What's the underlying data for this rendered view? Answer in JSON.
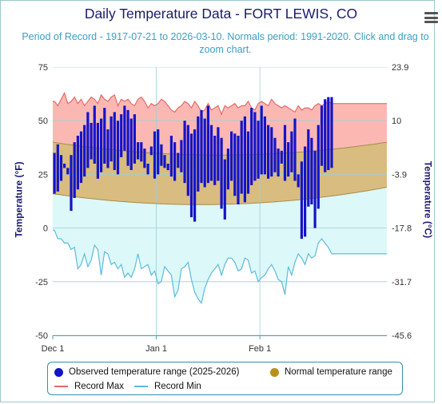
{
  "title": "Daily Temperature Data - FORT LEWIS, CO",
  "subtitle": "Period of Record - 1917-07-21 to 2026-03-10. Normals period: 1991-2020. Click and drag to zoom chart.",
  "menu_icon": "hamburger-menu-icon",
  "colors": {
    "observed": "#1414c8",
    "normal_fill": "#d9bc80",
    "normal_dot": "#b8901c",
    "record_max_line": "#e36b6b",
    "record_max_fill": "#fbb8b3",
    "record_min_line": "#5cbcde",
    "record_min_fill": "#dcf8f8"
  },
  "legend": {
    "observed": "Observed temperature range (2025-2026)",
    "normal": "Normal temperature range",
    "record_max": "Record Max",
    "record_min": "Record Min"
  },
  "chart_data": {
    "type": "area",
    "title": "Daily Temperature Data - FORT LEWIS, CO",
    "x_start": "2025-12-01",
    "x_ticks": [
      "Dec 1",
      "Jan 1",
      "Feb 1"
    ],
    "ylabel_left": "Temperature (°F)",
    "ylabel_right": "Temperature (°C)",
    "ylim_f": [
      -50,
      75
    ],
    "yticks_left": [
      "75",
      "50",
      "25",
      "0",
      "-25",
      "-50"
    ],
    "yticks_right": [
      "23.9",
      "10",
      "-3.9",
      "-17.8",
      "-31.7",
      "-45.6"
    ],
    "grid": true,
    "legend_position": "bottom",
    "series": [
      {
        "name": "Observed temperature range (2025-2026)",
        "low": [
          16,
          17,
          22,
          28,
          25,
          8,
          14,
          18,
          21,
          24,
          28,
          32,
          30,
          23,
          26,
          30,
          28,
          31,
          27,
          25,
          33,
          36,
          29,
          27,
          30,
          32,
          31,
          28,
          25,
          34,
          23,
          25,
          29,
          28,
          27,
          24,
          22,
          28,
          26,
          21,
          15,
          5,
          3,
          17,
          21,
          19,
          21,
          22,
          20,
          22,
          9,
          4,
          18,
          22,
          15,
          11,
          16,
          12,
          16,
          20,
          22,
          23,
          25,
          25,
          23,
          24,
          26,
          24,
          30,
          22,
          24,
          26,
          22,
          19,
          -5,
          -4,
          10,
          11,
          0,
          9,
          29,
          26,
          27,
          28
        ],
        "high": [
          35,
          39,
          34,
          30,
          28,
          34,
          40,
          43,
          45,
          48,
          54,
          49,
          57,
          49,
          51,
          56,
          46,
          52,
          54,
          50,
          53,
          57,
          55,
          51,
          53,
          40,
          40,
          37,
          30,
          38,
          45,
          46,
          39,
          34,
          30,
          43,
          40,
          35,
          41,
          50,
          48,
          44,
          46,
          52,
          55,
          51,
          57,
          48,
          43,
          47,
          42,
          32,
          37,
          45,
          44,
          43,
          50,
          52,
          45,
          56,
          54,
          50,
          57,
          52,
          48,
          47,
          42,
          37,
          36,
          48,
          40,
          45,
          51,
          25,
          31,
          38,
          46,
          42,
          36,
          48,
          57,
          60,
          61,
          61
        ]
      },
      {
        "name": "Normal temperature range",
        "high_start": 40,
        "high_mid": 34,
        "high_end": 40,
        "low_start": 16,
        "low_mid": 11,
        "low_end": 19
      },
      {
        "name": "Record Max",
        "values": [
          59,
          57,
          60,
          63,
          58,
          59,
          61,
          58,
          60,
          57,
          59,
          61,
          60,
          58,
          62,
          60,
          59,
          61,
          62,
          57,
          60,
          59,
          60,
          58,
          57,
          60,
          61,
          59,
          56,
          58,
          57,
          58,
          60,
          59,
          57,
          55,
          54,
          56,
          57,
          59,
          58,
          56,
          59,
          57,
          54,
          55,
          58,
          55,
          56,
          57,
          53,
          57,
          56,
          57,
          58,
          56,
          57,
          57,
          59,
          56,
          55,
          58,
          59,
          58,
          57,
          60,
          58,
          57,
          56,
          57,
          56,
          55,
          54,
          57,
          55,
          56,
          56,
          55,
          57,
          58,
          57,
          58,
          59,
          58
        ]
      },
      {
        "name": "Record Min",
        "values": [
          -1,
          -5,
          -5,
          -7,
          -7,
          -10,
          -9,
          -19,
          -17,
          -12,
          -18,
          -15,
          -8,
          -10,
          -22,
          -11,
          -12,
          -17,
          -16,
          -19,
          -17,
          -23,
          -21,
          -23,
          -19,
          -12,
          -19,
          -18,
          -17,
          -22,
          -20,
          -26,
          -25,
          -18,
          -20,
          -22,
          -32,
          -29,
          -19,
          -18,
          -16,
          -24,
          -30,
          -33,
          -35,
          -28,
          -24,
          -21,
          -19,
          -17,
          -22,
          -17,
          -14,
          -14,
          -16,
          -20,
          -19,
          -14,
          -15,
          -21,
          -20,
          -25,
          -23,
          -22,
          -19,
          -17,
          -20,
          -24,
          -25,
          -31,
          -18,
          -22,
          -16,
          -12,
          -14,
          -17,
          -12,
          -14,
          -13,
          -7,
          -5,
          -7,
          -9,
          -12
        ]
      }
    ]
  }
}
